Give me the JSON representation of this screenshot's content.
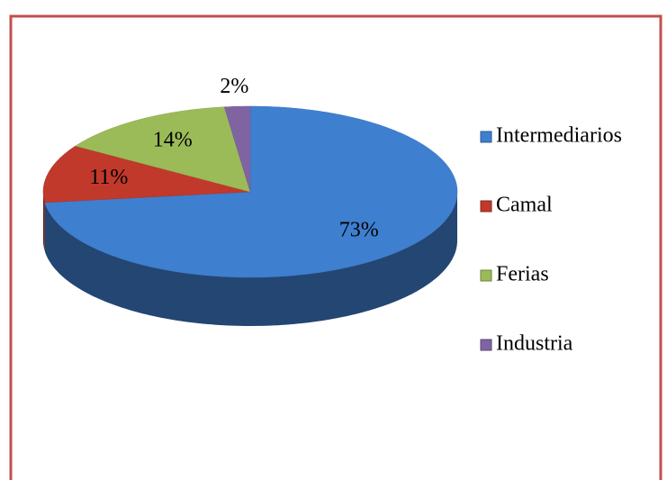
{
  "chart_data": {
    "type": "pie",
    "categories": [
      "Intermediarios",
      "Camal",
      "Ferias",
      "Industria"
    ],
    "values": [
      73,
      11,
      14,
      2
    ],
    "value_labels": [
      "73%",
      "11%",
      "14%",
      "2%"
    ],
    "colors": [
      "#3f7fd0",
      "#c0392b",
      "#9bbb59",
      "#8064a2"
    ],
    "legend": "right"
  }
}
